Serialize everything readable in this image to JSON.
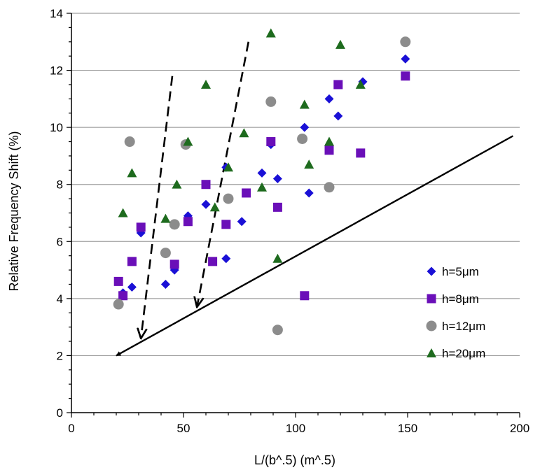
{
  "chart_data": {
    "type": "scatter",
    "xlabel": "L/(b^.5) (m^.5)",
    "ylabel": "Relative Frequency Shift (%)",
    "xlim": [
      0,
      200
    ],
    "ylim": [
      0,
      14
    ],
    "x_ticks": [
      "0",
      "50",
      "100",
      "150",
      "200"
    ],
    "y_ticks": [
      "0",
      "2",
      "4",
      "6",
      "8",
      "10",
      "12",
      "14"
    ],
    "grid": "horizontal",
    "legend_position": "lower-right",
    "series": [
      {
        "name": "h=5μm",
        "marker": "diamond",
        "color": "#1a10d6",
        "points": [
          [
            23,
            4.2
          ],
          [
            27,
            4.4
          ],
          [
            31,
            6.3
          ],
          [
            42,
            4.5
          ],
          [
            46,
            5.0
          ],
          [
            52,
            6.9
          ],
          [
            60,
            7.3
          ],
          [
            69,
            5.4
          ],
          [
            69,
            8.6
          ],
          [
            76,
            6.7
          ],
          [
            85,
            8.4
          ],
          [
            89,
            9.4
          ],
          [
            92,
            8.2
          ],
          [
            104,
            10.0
          ],
          [
            106,
            7.7
          ],
          [
            115,
            11.0
          ],
          [
            119,
            10.4
          ],
          [
            130,
            11.6
          ],
          [
            149,
            12.4
          ]
        ]
      },
      {
        "name": "h=8μm",
        "marker": "square",
        "color": "#6a0fb8",
        "points": [
          [
            21,
            4.6
          ],
          [
            23,
            4.1
          ],
          [
            27,
            5.3
          ],
          [
            31,
            6.5
          ],
          [
            46,
            5.2
          ],
          [
            52,
            6.7
          ],
          [
            60,
            8.0
          ],
          [
            63,
            5.3
          ],
          [
            69,
            6.6
          ],
          [
            78,
            7.7
          ],
          [
            89,
            9.5
          ],
          [
            92,
            7.2
          ],
          [
            104,
            4.1
          ],
          [
            115,
            9.2
          ],
          [
            119,
            11.5
          ],
          [
            129,
            9.1
          ],
          [
            149,
            11.8
          ]
        ]
      },
      {
        "name": "h=12μm",
        "marker": "circle",
        "color": "#8c8c8c",
        "points": [
          [
            21,
            3.8
          ],
          [
            26,
            9.5
          ],
          [
            42,
            5.6
          ],
          [
            46,
            6.6
          ],
          [
            51,
            9.4
          ],
          [
            70,
            7.5
          ],
          [
            89,
            10.9
          ],
          [
            92,
            2.9
          ],
          [
            103,
            9.6
          ],
          [
            115,
            7.9
          ],
          [
            149,
            13.0
          ]
        ]
      },
      {
        "name": "h=20μm",
        "marker": "triangle",
        "color": "#1e6b1e",
        "points": [
          [
            23,
            7.0
          ],
          [
            27,
            8.4
          ],
          [
            42,
            6.8
          ],
          [
            47,
            8.0
          ],
          [
            52,
            9.5
          ],
          [
            60,
            11.5
          ],
          [
            64,
            7.2
          ],
          [
            70,
            8.6
          ],
          [
            77,
            9.8
          ],
          [
            85,
            7.9
          ],
          [
            89,
            13.3
          ],
          [
            92,
            5.4
          ],
          [
            104,
            10.8
          ],
          [
            106,
            8.7
          ],
          [
            115,
            9.5
          ],
          [
            120,
            12.9
          ],
          [
            129,
            11.5
          ]
        ]
      }
    ],
    "annotations": [
      {
        "kind": "solid-arrow",
        "from": [
          197,
          9.7
        ],
        "to": [
          20,
          2.0
        ]
      },
      {
        "kind": "dashed-arrow",
        "from": [
          45,
          11.8
        ],
        "to": [
          31,
          2.6
        ]
      },
      {
        "kind": "dashed-arrow",
        "from": [
          79,
          13.0
        ],
        "to": [
          56,
          3.7
        ]
      }
    ]
  }
}
